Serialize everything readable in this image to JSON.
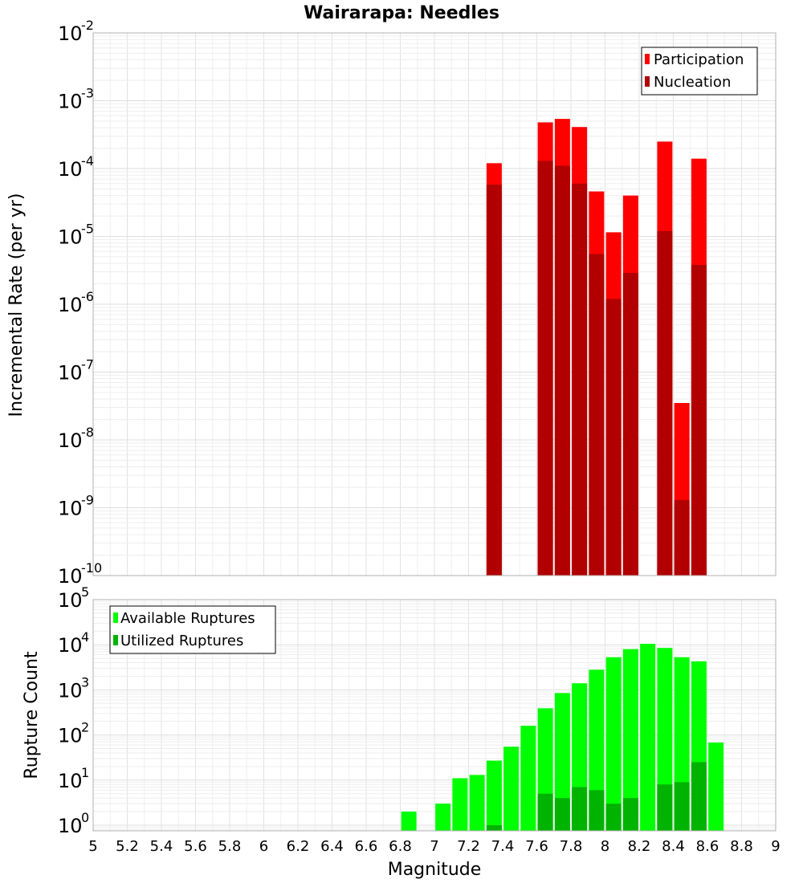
{
  "chart_data": [
    {
      "type": "bar",
      "title": "Wairarapa: Needles",
      "xlabel": "",
      "ylabel": "Incremental Rate (per yr)",
      "yscale": "log",
      "ylim": [
        1e-10,
        0.01
      ],
      "xlim": [
        5,
        9
      ],
      "grid": true,
      "legend_position": "top-right",
      "yticks": [
        "10",
        "10",
        "10",
        "10",
        "10",
        "10",
        "10",
        "10",
        "10"
      ],
      "ytick_exponents": [
        "-10",
        "-9",
        "-8",
        "-7",
        "-6",
        "-5",
        "-4",
        "-3",
        "-2"
      ],
      "series": [
        {
          "name": "Participation",
          "color": "#ff0000",
          "x": [
            7.35,
            7.65,
            7.75,
            7.85,
            7.95,
            8.05,
            8.15,
            8.35,
            8.45,
            8.55
          ],
          "values": [
            0.00012,
            0.00048,
            0.00054,
            0.00041,
            4.6e-05,
            1.15e-05,
            4e-05,
            0.00025,
            3.5e-08,
            0.00014
          ]
        },
        {
          "name": "Nucleation",
          "color": "#b20000",
          "x": [
            7.35,
            7.65,
            7.75,
            7.85,
            7.95,
            8.05,
            8.15,
            8.35,
            8.45,
            8.55
          ],
          "values": [
            5.8e-05,
            0.00013,
            0.00011,
            6e-05,
            5.5e-06,
            1.2e-06,
            2.9e-06,
            1.2e-05,
            1.3e-09,
            3.8e-06
          ]
        }
      ]
    },
    {
      "type": "bar",
      "title": "",
      "xlabel": "Magnitude",
      "ylabel": "Rupture Count",
      "yscale": "log",
      "ylim": [
        0.75,
        100000
      ],
      "xlim": [
        5,
        9
      ],
      "grid": true,
      "legend_position": "top-left",
      "yticks": [
        "10",
        "10",
        "10",
        "10",
        "10",
        "10"
      ],
      "ytick_exponents": [
        "0",
        "1",
        "2",
        "3",
        "4",
        "5"
      ],
      "xticks": [
        "5",
        "5.2",
        "5.4",
        "5.6",
        "5.8",
        "6",
        "6.2",
        "6.4",
        "6.6",
        "6.8",
        "7",
        "7.2",
        "7.4",
        "7.6",
        "7.8",
        "8",
        "8.2",
        "8.4",
        "8.6",
        "8.8",
        "9"
      ],
      "series": [
        {
          "name": "Available Ruptures",
          "color": "#00ff00",
          "x": [
            6.85,
            7.05,
            7.15,
            7.25,
            7.35,
            7.45,
            7.55,
            7.65,
            7.75,
            7.85,
            7.95,
            8.05,
            8.15,
            8.25,
            8.35,
            8.45,
            8.55,
            8.65
          ],
          "values": [
            2,
            3,
            11,
            13,
            27,
            55,
            160,
            390,
            850,
            1400,
            2800,
            5300,
            8000,
            10500,
            8500,
            5300,
            4300,
            68
          ]
        },
        {
          "name": "Utilized Ruptures",
          "color": "#00b300",
          "x": [
            7.35,
            7.65,
            7.75,
            7.85,
            7.95,
            8.05,
            8.15,
            8.35,
            8.45,
            8.55
          ],
          "values": [
            1,
            5,
            4,
            7,
            6,
            3,
            4,
            8,
            9,
            25
          ]
        }
      ]
    }
  ]
}
